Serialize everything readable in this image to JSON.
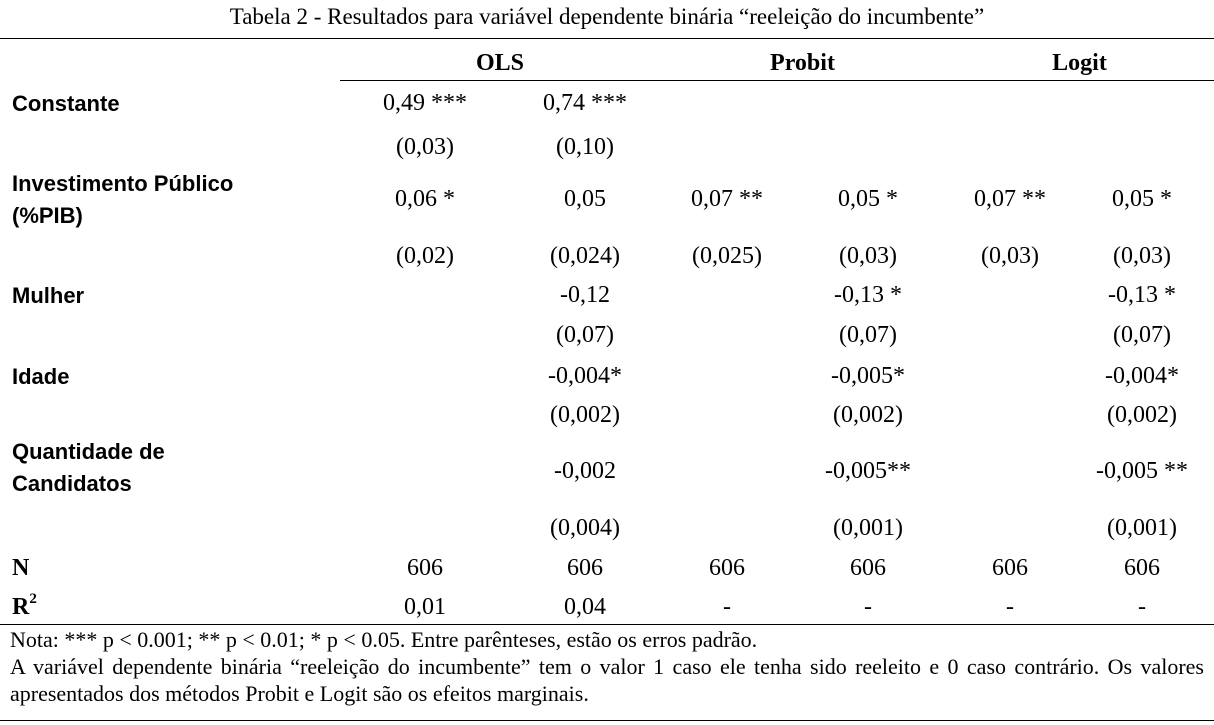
{
  "title": "Tabela 2 - Resultados para variável dependente binária “reeleição do incumbente”",
  "groups": [
    "OLS",
    "Probit",
    "Logit"
  ],
  "rows": {
    "constante": {
      "label": "Constante",
      "coef": [
        "0,49 ***",
        "0,74 ***",
        "",
        "",
        "",
        ""
      ],
      "se": [
        "(0,03)",
        "(0,10)",
        "",
        "",
        "",
        ""
      ]
    },
    "investimento": {
      "label_line1": "Investimento Público",
      "label_line2": "(%PIB)",
      "coef": [
        "0,06 *",
        "0,05",
        "0,07 **",
        "0,05 *",
        "0,07 **",
        "0,05 *"
      ],
      "se": [
        "(0,02)",
        "(0,024)",
        "(0,025)",
        "(0,03)",
        "(0,03)",
        "(0,03)"
      ]
    },
    "mulher": {
      "label": "Mulher",
      "coef": [
        "",
        "-0,12",
        "",
        "-0,13 *",
        "",
        "-0,13 *"
      ],
      "se": [
        "",
        "(0,07)",
        "",
        "(0,07)",
        "",
        "(0,07)"
      ]
    },
    "idade": {
      "label": "Idade",
      "coef": [
        "",
        "-0,004*",
        "",
        "-0,005*",
        "",
        "-0,004*"
      ],
      "se": [
        "",
        "(0,002)",
        "",
        "(0,002)",
        "",
        "(0,002)"
      ]
    },
    "quantidade": {
      "label_line1": "Quantidade de",
      "label_line2": "Candidatos",
      "coef": [
        "",
        "-0,002",
        "",
        "-0,005**",
        "",
        "-0,005 **"
      ],
      "se": [
        "",
        "(0,004)",
        "",
        "(0,001)",
        "",
        "(0,001)"
      ]
    },
    "n": {
      "label": "N",
      "values": [
        "606",
        "606",
        "606",
        "606",
        "606",
        "606"
      ]
    },
    "r2": {
      "label": "R",
      "label_sup": "2",
      "values": [
        "0,01",
        "0,04",
        "-",
        "-",
        "-",
        "-"
      ]
    }
  },
  "notes": {
    "line1": "Nota: *** p < 0.001; ** p < 0.01; * p < 0.05. Entre parênteses, estão os erros padrão.",
    "line2": "A variável dependente binária “reeleição do incumbente” tem o valor 1 caso ele tenha sido reeleito e 0 caso contrário. Os valores apresentados dos métodos Probit e Logit são os efeitos marginais."
  }
}
